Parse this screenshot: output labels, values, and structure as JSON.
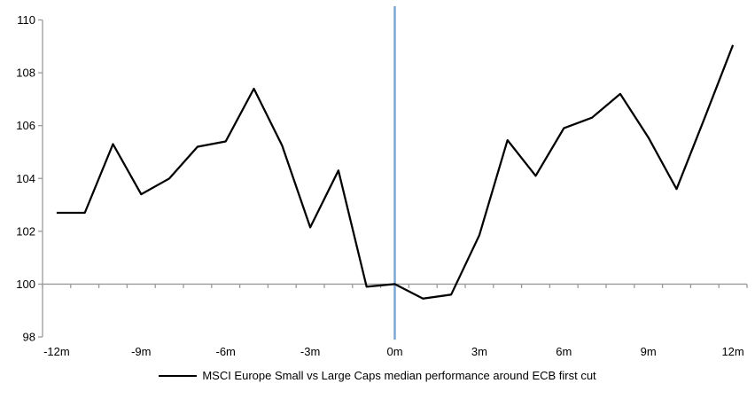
{
  "chart_data": {
    "type": "line",
    "title": "",
    "xlabel": "",
    "ylabel": "",
    "x": [
      -12,
      -11,
      -10,
      -9,
      -8,
      -7,
      -6,
      -5,
      -4,
      -3,
      -2,
      -1,
      0,
      1,
      2,
      3,
      4,
      5,
      6,
      7,
      8,
      9,
      10,
      11,
      12
    ],
    "series": [
      {
        "name": "MSCI Europe Small vs Large Caps median performance around ECB first cut",
        "color": "#000000",
        "values": [
          102.7,
          102.7,
          105.3,
          103.4,
          104.0,
          105.2,
          105.4,
          107.4,
          105.25,
          102.15,
          104.3,
          99.9,
          100.0,
          99.45,
          99.6,
          101.85,
          105.45,
          104.1,
          105.9,
          106.3,
          107.2,
          105.55,
          103.6,
          106.3,
          109.05
        ]
      }
    ],
    "x_ticks": [
      -12,
      -9,
      -6,
      -3,
      0,
      3,
      6,
      9,
      12
    ],
    "x_tick_labels": [
      "-12m",
      "-9m",
      "-6m",
      "-3m",
      "0m",
      "3m",
      "6m",
      "9m",
      "12m"
    ],
    "y_ticks": [
      98,
      100,
      102,
      104,
      106,
      108,
      110
    ],
    "y_tick_labels": [
      "98",
      "100",
      "102",
      "104",
      "106",
      "108",
      "110"
    ],
    "ylim": [
      98,
      110
    ],
    "xlim": [
      -12.5,
      12.5
    ],
    "baseline_value": 100,
    "grid": "off",
    "axis_color": "#9b9b9b",
    "event_line": {
      "x": 0,
      "color": "#7EA6D4"
    },
    "legend_position": "bottom"
  },
  "colors": {
    "background": "#ffffff",
    "series_line": "#000000",
    "axis": "#9b9b9b",
    "event_line_blue": "#7EA6D4"
  }
}
